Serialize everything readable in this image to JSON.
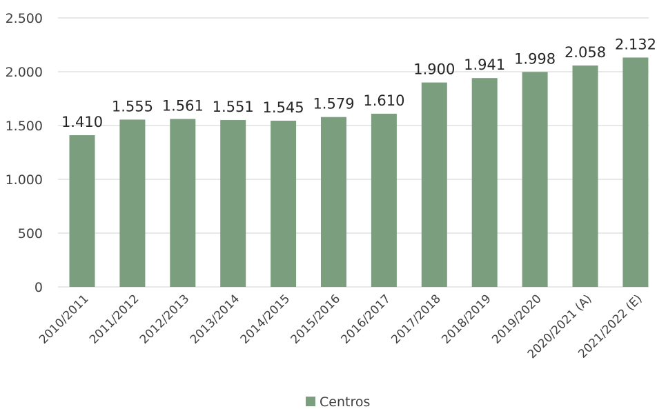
{
  "chart_data": {
    "type": "bar",
    "categories": [
      "2010/2011",
      "2011/2012",
      "2012/2013",
      "2013/2014",
      "2014/2015",
      "2015/2016",
      "2016/2017",
      "2017/2018",
      "2018/2019",
      "2019/2020",
      "2020/2021 (A)",
      "2021/2022 (E)"
    ],
    "series": [
      {
        "name": "Centros",
        "values": [
          1410,
          1555,
          1561,
          1551,
          1545,
          1579,
          1610,
          1900,
          1941,
          1998,
          2058,
          2132
        ],
        "data_labels": [
          "1.410",
          "1.555",
          "1.561",
          "1.551",
          "1.545",
          "1.579",
          "1.610",
          "1.900",
          "1.941",
          "1.998",
          "2.058",
          "2.132"
        ],
        "color": "#7a9e7e"
      }
    ],
    "yticks": [
      0,
      500,
      1000,
      1500,
      2000,
      2500
    ],
    "ytick_labels": [
      "0",
      "500",
      "1.000",
      "1.500",
      "2.000",
      "2.500"
    ],
    "ylim": [
      0,
      2500
    ],
    "grid": true,
    "legend": {
      "position": "bottom",
      "entries": [
        "Centros"
      ]
    },
    "title": "",
    "xlabel": "",
    "ylabel": ""
  }
}
